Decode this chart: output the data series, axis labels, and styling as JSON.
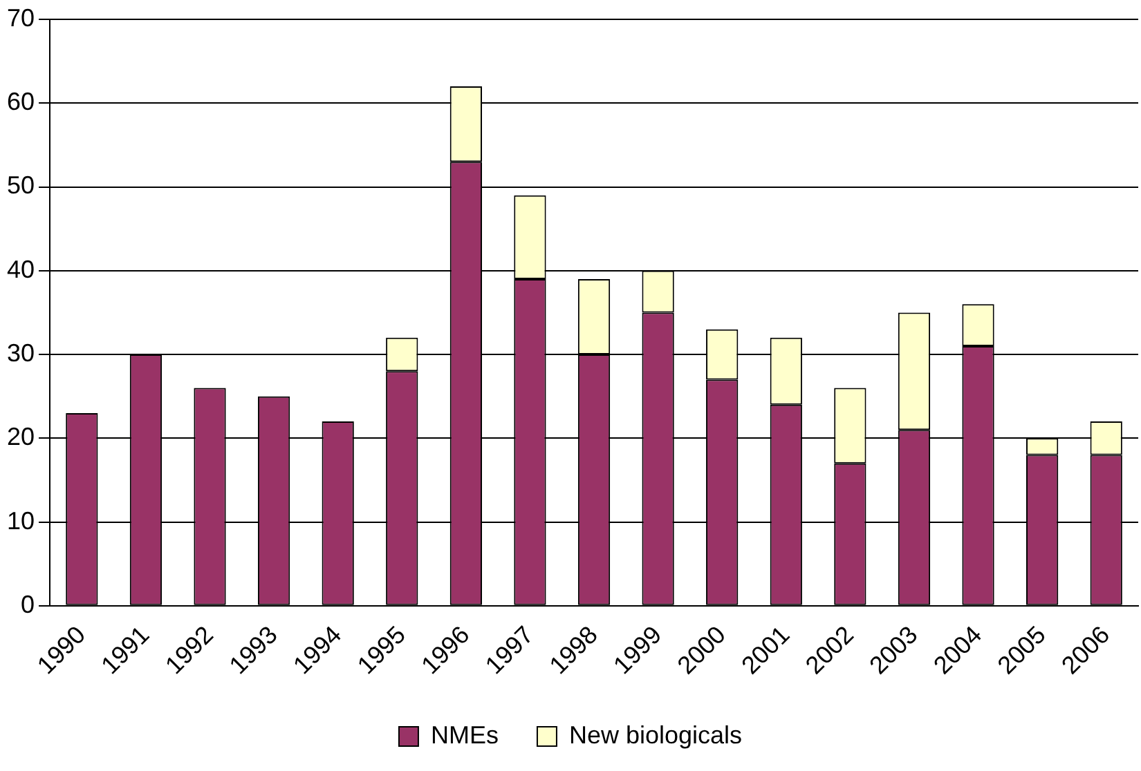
{
  "chart_data": {
    "type": "bar",
    "stacked": true,
    "categories": [
      "1990",
      "1991",
      "1992",
      "1993",
      "1994",
      "1995",
      "1996",
      "1997",
      "1998",
      "1999",
      "2000",
      "2001",
      "2002",
      "2003",
      "2004",
      "2005",
      "2006"
    ],
    "series": [
      {
        "name": "NMEs",
        "color": "#993366",
        "values": [
          23,
          30,
          26,
          25,
          22,
          28,
          53,
          39,
          30,
          35,
          27,
          24,
          17,
          21,
          31,
          18,
          18
        ]
      },
      {
        "name": "New biologicals",
        "color": "#ffffcc",
        "values": [
          0,
          0,
          0,
          0,
          0,
          4,
          9,
          10,
          9,
          5,
          6,
          8,
          9,
          14,
          5,
          2,
          4
        ]
      }
    ],
    "ylim": [
      0,
      70
    ],
    "yticks": [
      0,
      10,
      20,
      30,
      40,
      50,
      60,
      70
    ],
    "grid": "y",
    "legend": "bottom"
  }
}
